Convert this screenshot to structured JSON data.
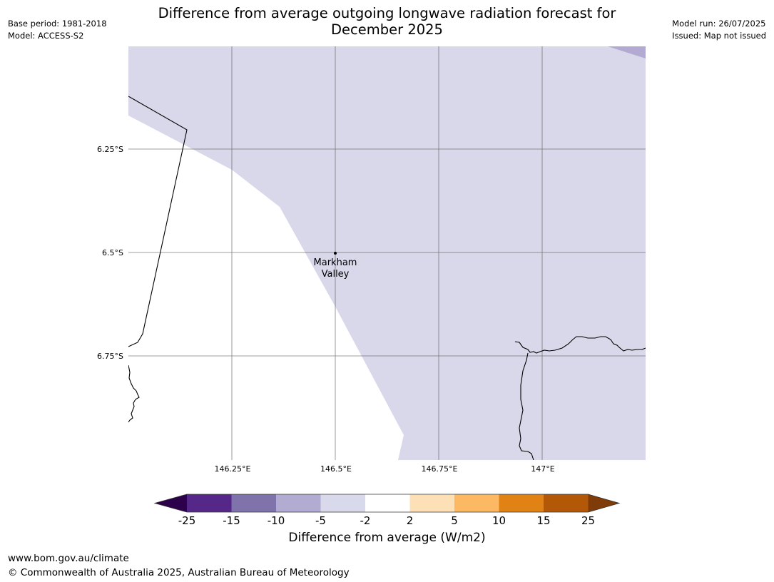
{
  "header": {
    "title_line1": "Difference from average outgoing longwave radiation forecast for",
    "title_line2": "December 2025",
    "base_period": "Base period: 1981-2018",
    "model": "Model: ACCESS-S2",
    "model_run": "Model run: 26/07/2025",
    "issued": "Issued: Map not issued"
  },
  "map": {
    "lat_labels": [
      "6.25°S",
      "6.5°S",
      "6.75°S"
    ],
    "lon_labels": [
      "146.25°E",
      "146.5°E",
      "146.75°E",
      "147°E"
    ],
    "place": {
      "name_line1": "Markham",
      "name_line2": "Valley"
    },
    "fill_colors": {
      "light_purple": "#d8d8ea",
      "mid_purple": "#b2aad2",
      "background": "#ffffff"
    }
  },
  "colorbar": {
    "label": "Difference from average (W/m2)",
    "ticks": [
      "-25",
      "-15",
      "-10",
      "-5",
      "-2",
      "2",
      "5",
      "10",
      "15",
      "25"
    ],
    "colors": [
      "#2d004b",
      "#542788",
      "#8073ac",
      "#b2abd2",
      "#d8daeb",
      "#ffffff",
      "#fee0b6",
      "#fdb863",
      "#e08214",
      "#b35806",
      "#7f3b08"
    ]
  },
  "footer": {
    "url": "www.bom.gov.au/climate",
    "copyright": "© Commonwealth of Australia 2025, Australian Bureau of Meteorology"
  }
}
